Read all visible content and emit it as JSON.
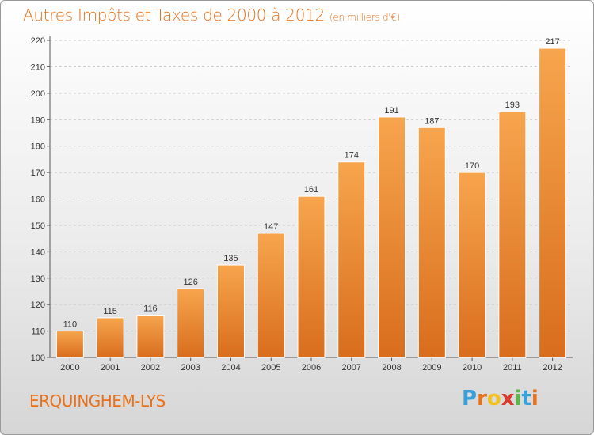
{
  "header": {
    "title": "Autres Impôts et Taxes de 2000 à 2012",
    "subtitle": "(en milliers d'€)"
  },
  "footer": {
    "city": "ERQUINGHEM-LYS",
    "logo_letters": [
      "P",
      "r",
      "o",
      "x",
      "i",
      "t",
      "i"
    ],
    "logo_colors": [
      "#3aa0dc",
      "#e8721c",
      "#f3c11c",
      "#d93a2a",
      "#5ab848",
      "#3aa0dc",
      "#e8721c"
    ]
  },
  "colors": {
    "bar_top": "#f7a54e",
    "bar_bottom": "#d86d1d",
    "title": "#e8721c"
  },
  "chart_data": {
    "type": "bar",
    "title": "Autres Impôts et Taxes de 2000 à 2012",
    "subtitle": "(en milliers d'€)",
    "categories": [
      "2000",
      "2001",
      "2002",
      "2003",
      "2004",
      "2005",
      "2006",
      "2007",
      "2008",
      "2009",
      "2010",
      "2011",
      "2012"
    ],
    "values": [
      110,
      115,
      116,
      126,
      135,
      147,
      161,
      174,
      191,
      187,
      170,
      193,
      217
    ],
    "ylim": [
      100,
      220
    ],
    "yticks": [
      100,
      110,
      120,
      130,
      140,
      150,
      160,
      170,
      180,
      190,
      200,
      210,
      220
    ],
    "grid": true,
    "legend": "none"
  }
}
